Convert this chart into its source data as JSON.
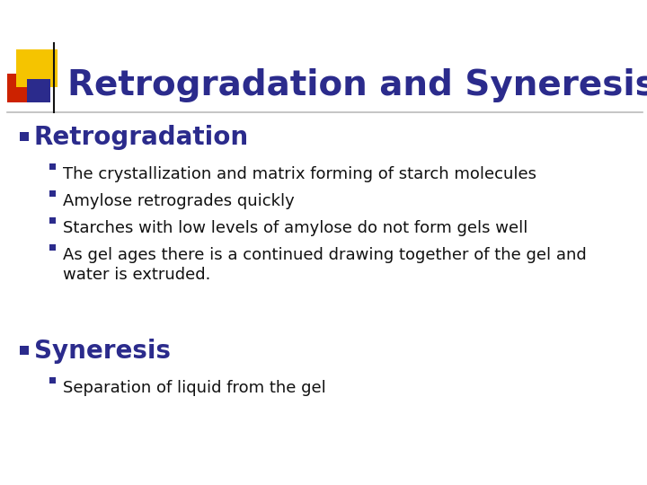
{
  "title": "Retrogradation and Syneresis",
  "title_color": "#2B2B8C",
  "title_fontsize": 28,
  "background_color": "#FFFFFF",
  "section1_label": "Retrogradation",
  "section1_bullet_color": "#2B2B8C",
  "section1_fontsize": 20,
  "bullets1": [
    "The crystallization and matrix forming of starch molecules",
    "Amylose retrogrades quickly",
    "Starches with low levels of amylose do not form gels well",
    "As gel ages there is a continued drawing together of the gel and\nwater is extruded."
  ],
  "bullet_color": "#2B2B8C",
  "bullet_fontsize": 13,
  "section2_label": "Syneresis",
  "section2_fontsize": 20,
  "bullets2": [
    "Separation of liquid from the gel"
  ],
  "logo_yellow": "#F5C400",
  "logo_red": "#CC2200",
  "logo_blue": "#2B2B8C",
  "logo_line_color": "#111111"
}
